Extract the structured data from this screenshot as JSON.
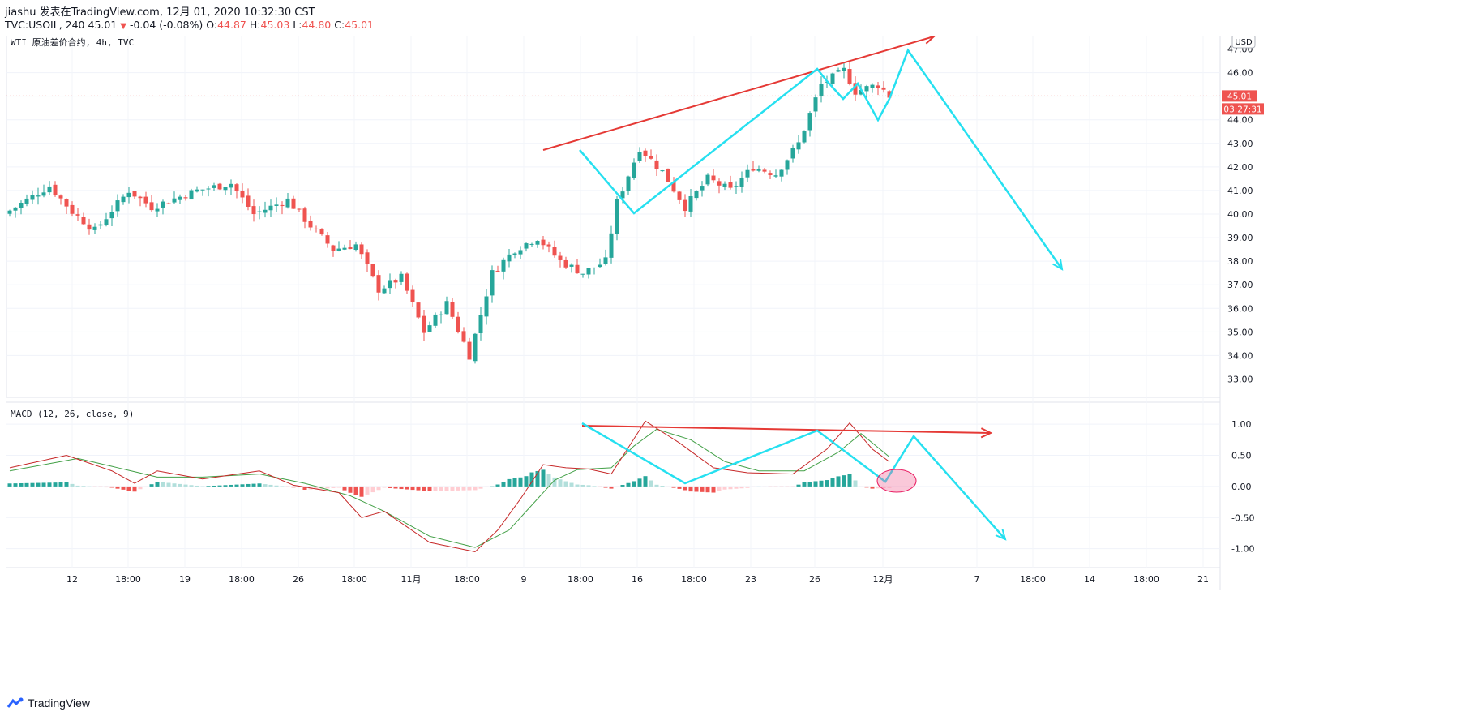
{
  "header": {
    "line1": "jiashu 发表在TradingView.com, 12月 01, 2020 10:32:30 CST",
    "symbol": "TVC:USOIL, 240",
    "last": "45.01",
    "change": "-0.04 (-0.08%)",
    "o_label": "O:",
    "o_value": "44.87",
    "h_label": "H:",
    "h_value": "45.03",
    "l_label": "L:",
    "l_value": "44.80",
    "c_label": "C:",
    "c_value": "45.01"
  },
  "brand": {
    "label": "TradingView"
  },
  "chart_data": [
    {
      "type": "candlestick",
      "title": "WTI 原油差价合约, 4h, TVC",
      "currency": "USD",
      "last_price_label": "45.01",
      "countdown_label": "03:27:31",
      "last_price": 45.01,
      "ylim": [
        32.5,
        47.5
      ],
      "y_ticks": [
        "33.00",
        "34.00",
        "35.00",
        "36.00",
        "37.00",
        "38.00",
        "39.00",
        "40.00",
        "41.00",
        "42.00",
        "43.00",
        "44.00",
        "45.00",
        "46.00",
        "47.00"
      ],
      "x_ticks": [
        "12",
        "18:00",
        "19",
        "18:00",
        "26",
        "18:00",
        "11月",
        "18:00",
        "9",
        "18:00",
        "16",
        "18:00",
        "23",
        "26",
        "12月",
        "7",
        "18:00",
        "14",
        "18:00",
        "21"
      ],
      "bar_count": 156,
      "price_path": [
        [
          0,
          40.0
        ],
        [
          8,
          41.2
        ],
        [
          12,
          40.1
        ],
        [
          16,
          39.3
        ],
        [
          22,
          41.0
        ],
        [
          26,
          40.3
        ],
        [
          34,
          41.0
        ],
        [
          40,
          41.3
        ],
        [
          44,
          40.0
        ],
        [
          50,
          40.6
        ],
        [
          54,
          39.5
        ],
        [
          58,
          38.5
        ],
        [
          62,
          38.7
        ],
        [
          66,
          36.8
        ],
        [
          70,
          37.3
        ],
        [
          74,
          35.0
        ],
        [
          78,
          36.2
        ],
        [
          82,
          34.0
        ],
        [
          86,
          37.5
        ],
        [
          90,
          38.5
        ],
        [
          94,
          39.0
        ],
        [
          98,
          38.0
        ],
        [
          102,
          37.5
        ],
        [
          106,
          38.0
        ],
        [
          108,
          40.5
        ],
        [
          112,
          42.8
        ],
        [
          116,
          41.8
        ],
        [
          120,
          40.3
        ],
        [
          124,
          41.5
        ],
        [
          128,
          41.0
        ],
        [
          132,
          42.0
        ],
        [
          136,
          41.7
        ],
        [
          140,
          43.0
        ],
        [
          144,
          45.5
        ],
        [
          148,
          46.1
        ],
        [
          150,
          45.2
        ],
        [
          154,
          45.5
        ],
        [
          156,
          45.01
        ]
      ],
      "trendline": [
        [
          670,
          185
        ],
        [
          1152,
          45
        ]
      ],
      "wave_path": [
        [
          715,
          185
        ],
        [
          782,
          263
        ],
        [
          1008,
          85
        ],
        [
          1020,
          100
        ],
        [
          1040,
          122
        ],
        [
          1058,
          103
        ],
        [
          1083,
          148
        ],
        [
          1097,
          122
        ],
        [
          1120,
          62
        ],
        [
          1310,
          332
        ]
      ]
    },
    {
      "type": "macd",
      "title": "MACD (12, 26, close, 9)",
      "ylim": [
        -1.2,
        1.25
      ],
      "y_ticks": [
        "1.00",
        "0.50",
        "0.00",
        "-0.50",
        "-1.00"
      ],
      "macd_path": [
        [
          0,
          0.3
        ],
        [
          10,
          0.5
        ],
        [
          18,
          0.25
        ],
        [
          22,
          0.05
        ],
        [
          26,
          0.25
        ],
        [
          34,
          0.12
        ],
        [
          44,
          0.25
        ],
        [
          50,
          0.02
        ],
        [
          58,
          -0.1
        ],
        [
          62,
          -0.5
        ],
        [
          66,
          -0.4
        ],
        [
          74,
          -0.9
        ],
        [
          82,
          -1.05
        ],
        [
          86,
          -0.7
        ],
        [
          90,
          -0.2
        ],
        [
          94,
          0.35
        ],
        [
          98,
          0.3
        ],
        [
          102,
          0.28
        ],
        [
          106,
          0.2
        ],
        [
          112,
          1.05
        ],
        [
          118,
          0.7
        ],
        [
          124,
          0.3
        ],
        [
          130,
          0.22
        ],
        [
          138,
          0.2
        ],
        [
          144,
          0.6
        ],
        [
          148,
          1.02
        ],
        [
          152,
          0.6
        ],
        [
          156,
          0.33
        ]
      ],
      "signal_path": [
        [
          0,
          0.25
        ],
        [
          12,
          0.45
        ],
        [
          20,
          0.28
        ],
        [
          26,
          0.15
        ],
        [
          34,
          0.15
        ],
        [
          44,
          0.2
        ],
        [
          52,
          0.05
        ],
        [
          60,
          -0.15
        ],
        [
          66,
          -0.4
        ],
        [
          74,
          -0.8
        ],
        [
          82,
          -0.98
        ],
        [
          88,
          -0.7
        ],
        [
          92,
          -0.3
        ],
        [
          96,
          0.1
        ],
        [
          100,
          0.27
        ],
        [
          106,
          0.3
        ],
        [
          110,
          0.65
        ],
        [
          114,
          0.92
        ],
        [
          120,
          0.75
        ],
        [
          126,
          0.4
        ],
        [
          132,
          0.25
        ],
        [
          140,
          0.25
        ],
        [
          146,
          0.55
        ],
        [
          150,
          0.85
        ],
        [
          156,
          0.4
        ]
      ],
      "trendline": [
        [
          718,
          525
        ],
        [
          1222,
          534
        ]
      ],
      "wave_path": [
        [
          718,
          522
        ],
        [
          845,
          596
        ],
        [
          1008,
          531
        ],
        [
          1092,
          594
        ],
        [
          1127,
          538
        ],
        [
          1240,
          665
        ]
      ],
      "highlight_ellipse": [
        1106,
        593,
        24,
        14
      ]
    }
  ]
}
